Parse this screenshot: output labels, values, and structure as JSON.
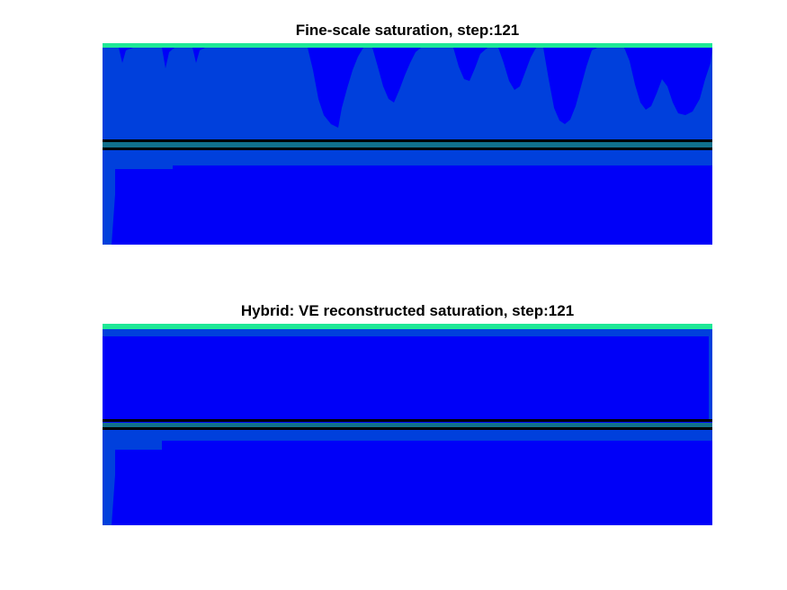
{
  "figure": {
    "panels": [
      {
        "title": "Fine-scale saturation, step:121",
        "kind": "fine"
      },
      {
        "title": "Hybrid: VE reconstructed saturation, step:121",
        "kind": "hybrid"
      }
    ],
    "colors": {
      "background_field": "#0000f8",
      "upper_layer": "#0040dc",
      "plume_front": "#1ee896",
      "layer_boundary": "#000000",
      "boundary_tint": "#10708c"
    }
  }
}
